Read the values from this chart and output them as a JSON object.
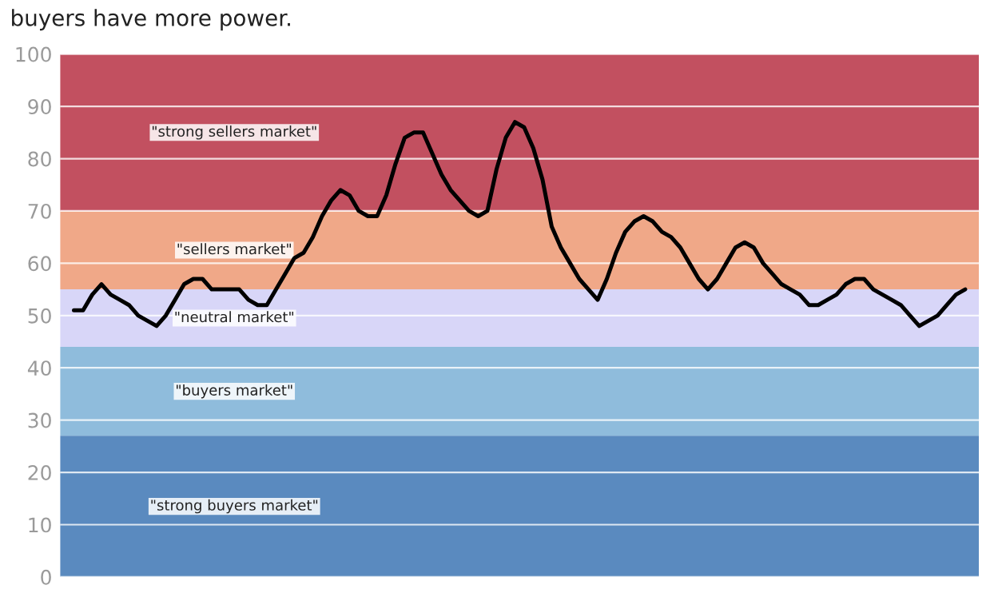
{
  "chart_data": {
    "type": "line",
    "subtitle": "buyers have more power.",
    "categories": [
      null,
      null,
      null,
      null,
      null,
      null,
      null,
      null,
      null,
      null,
      null,
      null,
      null,
      null,
      null,
      null,
      null,
      null,
      null,
      null,
      null,
      null,
      null,
      null,
      null,
      null,
      null,
      null,
      null,
      null,
      null,
      null,
      null,
      null,
      null,
      null,
      null,
      null,
      null,
      null,
      null,
      null,
      null,
      null,
      null,
      null,
      null,
      null,
      null,
      null,
      null,
      null,
      null,
      null,
      null,
      null,
      null,
      null,
      null,
      null,
      null,
      null,
      null,
      null,
      null,
      null,
      null,
      null,
      null,
      null,
      null,
      null,
      null,
      null,
      null,
      null,
      null,
      null,
      null,
      null,
      null,
      null,
      null,
      null,
      null,
      null,
      null,
      null,
      null,
      null,
      null,
      null,
      null,
      null,
      null,
      null,
      null,
      null
    ],
    "series": [
      {
        "color": "#000000",
        "values": [
          51,
          51,
          54,
          56,
          54,
          53,
          52,
          50,
          49,
          48,
          50,
          53,
          56,
          57,
          57,
          55,
          55,
          55,
          55,
          53,
          52,
          52,
          55,
          58,
          61,
          62,
          65,
          69,
          72,
          74,
          73,
          70,
          69,
          69,
          73,
          79,
          84,
          85,
          85,
          81,
          77,
          74,
          72,
          70,
          69,
          70,
          78,
          84,
          87,
          86,
          82,
          76,
          67,
          63,
          60,
          57,
          55,
          53,
          57,
          62,
          66,
          68,
          69,
          68,
          66,
          65,
          63,
          60,
          57,
          55,
          57,
          60,
          63,
          64,
          63,
          60,
          58,
          56,
          55,
          54,
          52,
          52,
          53,
          54,
          56,
          57,
          57,
          55,
          54,
          53,
          52,
          50,
          48,
          49,
          50,
          52,
          54,
          55
        ]
      }
    ],
    "ylim": [
      0,
      100
    ],
    "yticks": [
      0,
      10,
      20,
      30,
      40,
      50,
      60,
      70,
      80,
      90,
      100
    ],
    "grid": "y",
    "tick_labels": "y",
    "marker": "none",
    "line_style": "solid",
    "bands": [
      {
        "axis": "y",
        "from": 70,
        "to": 100,
        "label": "\"strong sellers market\"",
        "color": "#c25060"
      },
      {
        "axis": "y",
        "from": 55,
        "to": 70,
        "label": "\"sellers market\"",
        "color": "#f0a888"
      },
      {
        "axis": "y",
        "from": 44,
        "to": 55,
        "label": "\"neutral market\"",
        "color": "#d8d6f8"
      },
      {
        "axis": "y",
        "from": 27,
        "to": 44,
        "label": "\"buyers market\"",
        "color": "#8fbcdc"
      },
      {
        "axis": "y",
        "from": 0,
        "to": 27,
        "label": "\"strong buyers market\"",
        "color": "#5a8abf"
      }
    ]
  }
}
